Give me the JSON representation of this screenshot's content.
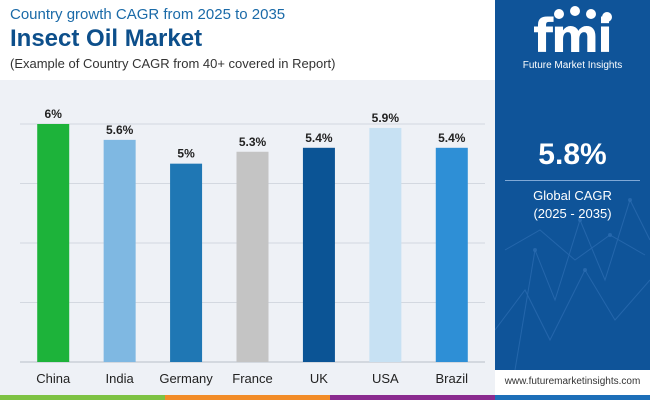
{
  "header": {
    "supertitle": "Country growth CAGR from 2025 to 2035",
    "title": "Insect Oil Market",
    "subtitle": "(Example of Country CAGR from 40+ covered in Report)"
  },
  "chart_data": {
    "type": "bar",
    "title": "Insect Oil Market",
    "categories": [
      "China",
      "India",
      "Germany",
      "France",
      "UK",
      "USA",
      "Brazil"
    ],
    "values": [
      6.0,
      5.6,
      5.0,
      5.3,
      5.4,
      5.9,
      5.4
    ],
    "labels": [
      "6%",
      "5.6%",
      "5%",
      "5.3%",
      "5.4%",
      "5.9%",
      "5.4%"
    ],
    "colors": [
      "#1db33a",
      "#7fb8e2",
      "#1f77b4",
      "#c4c4c4",
      "#0b5495",
      "#c7e1f3",
      "#2e8fd6"
    ],
    "ylim": [
      0,
      6
    ],
    "grid": true,
    "legend": "none",
    "xlabel": "",
    "ylabel": ""
  },
  "sidebar": {
    "logo_mark": "fmi",
    "logo_name": "Future Market Insights",
    "cagr_value": "5.8%",
    "cagr_label": "Global CAGR",
    "cagr_period": "(2025 - 2035)",
    "bg_color": "#0f5499"
  },
  "footer": {
    "website": "www.futuremarketinsights.com"
  }
}
